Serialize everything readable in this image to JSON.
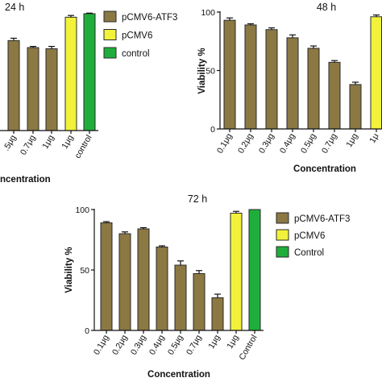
{
  "chart_data": [
    {
      "type": "bar",
      "title": "24 h",
      "xlabel": "ncentration",
      "ylim": [
        0,
        100
      ],
      "grid": false,
      "legend_placement": "right",
      "categories": [
        ".5μg",
        "0.7μg",
        "1μg",
        "1μg",
        "control"
      ],
      "series": [
        {
          "name": "pCMV6-ATF3",
          "color": "#8b7843",
          "values": [
            77,
            71,
            70,
            null,
            null
          ],
          "errors": [
            2,
            1,
            2,
            null,
            null
          ]
        },
        {
          "name": "pCMV6",
          "color": "#f2f23a",
          "values": [
            null,
            null,
            null,
            97,
            null
          ],
          "errors": [
            null,
            null,
            null,
            1.5,
            null
          ]
        },
        {
          "name": "control",
          "color": "#1fae3c",
          "values": [
            null,
            null,
            null,
            null,
            100
          ],
          "errors": [
            null,
            null,
            null,
            null,
            0.5
          ]
        }
      ]
    },
    {
      "type": "bar",
      "title": "48 h",
      "xlabel": "Concentration",
      "ylabel": "Viability %",
      "ylim": [
        0,
        100
      ],
      "yticks": [
        0,
        50,
        100
      ],
      "grid": false,
      "categories": [
        "0.1μg",
        "0.2μg",
        "0.3μg",
        "0.4μg",
        "0.5μg",
        "0.7μg",
        "1μg",
        "1μ"
      ],
      "series": [
        {
          "color": "#8b7843",
          "values": [
            93,
            89,
            85,
            78,
            69,
            57,
            38,
            null
          ],
          "errors": [
            2,
            1,
            1.5,
            2.5,
            2,
            1.5,
            2,
            null
          ]
        },
        {
          "color": "#f2f23a",
          "values": [
            null,
            null,
            null,
            null,
            null,
            null,
            null,
            96
          ],
          "errors": [
            null,
            null,
            null,
            null,
            null,
            null,
            null,
            1.5
          ]
        }
      ]
    },
    {
      "type": "bar",
      "title": "72 h",
      "xlabel": "Concentration",
      "ylabel": "Viability %",
      "ylim": [
        0,
        100
      ],
      "yticks": [
        0,
        50,
        100
      ],
      "grid": false,
      "legend_placement": "right",
      "categories": [
        "0.1μg",
        "0.2μg",
        "0.3μg",
        "0.4μg",
        "0.5μg",
        "0.7μg",
        "1μg",
        "1μg",
        "Control"
      ],
      "series": [
        {
          "name": "pCMV6-ATF3",
          "color": "#8b7843",
          "values": [
            89,
            80,
            84,
            69,
            54,
            47,
            27,
            null,
            null
          ],
          "errors": [
            1,
            1.5,
            1,
            1,
            3.5,
            2.5,
            3,
            null,
            null
          ]
        },
        {
          "name": "pCMV6",
          "color": "#f2f23a",
          "values": [
            null,
            null,
            null,
            null,
            null,
            null,
            null,
            97,
            null
          ],
          "errors": [
            null,
            null,
            null,
            null,
            null,
            null,
            null,
            1.5,
            null
          ]
        },
        {
          "name": "Control",
          "color": "#1fae3c",
          "values": [
            null,
            null,
            null,
            null,
            null,
            null,
            null,
            null,
            100
          ],
          "errors": [
            null,
            null,
            null,
            null,
            null,
            null,
            null,
            null,
            0
          ]
        }
      ]
    }
  ]
}
